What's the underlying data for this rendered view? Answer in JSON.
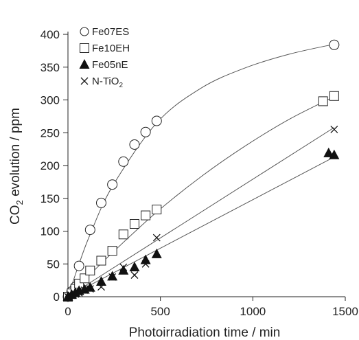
{
  "chart_data": {
    "type": "scatter",
    "title": "",
    "xlabel": "Photoirradiation time / min",
    "ylabel_main": "CO",
    "ylabel_sub": "2",
    "ylabel_rest": " evolution / ppm",
    "xlim": [
      0,
      1500
    ],
    "ylim": [
      0,
      400
    ],
    "xticks": [
      "0",
      "500",
      "1000",
      "1500"
    ],
    "yticks": [
      "0",
      "50",
      "100",
      "150",
      "200",
      "250",
      "300",
      "350",
      "400"
    ],
    "grid": false,
    "legend_position": "top-left",
    "series": [
      {
        "name": "Fe07ES",
        "marker": "open-circle",
        "x": [
          0,
          20,
          40,
          60,
          120,
          180,
          240,
          300,
          360,
          420,
          480,
          1440
        ],
        "y": [
          0,
          8,
          15,
          47,
          102,
          143,
          171,
          206,
          232,
          251,
          268,
          384
        ],
        "fit": {
          "x": [
            0,
            60,
            120,
            240,
            480,
            720,
            960,
            1200,
            1440
          ],
          "y": [
            0,
            50,
            95,
            168,
            265,
            318,
            349,
            370,
            385
          ]
        }
      },
      {
        "name": "Fe10EH",
        "marker": "open-square",
        "x": [
          0,
          20,
          40,
          60,
          90,
          120,
          180,
          240,
          300,
          360,
          420,
          480,
          1380,
          1440
        ],
        "y": [
          0,
          5,
          12,
          20,
          28,
          40,
          55,
          70,
          95,
          111,
          124,
          133,
          298,
          306
        ],
        "fit": {
          "x": [
            0,
            120,
            240,
            480,
            720,
            960,
            1200,
            1440
          ],
          "y": [
            0,
            34,
            67,
            129,
            183,
            230,
            271,
            305
          ]
        }
      },
      {
        "name": "Fe05nE",
        "marker": "filled-triangle",
        "x": [
          0,
          20,
          40,
          60,
          90,
          120,
          180,
          240,
          300,
          360,
          420,
          480,
          1410,
          1440
        ],
        "y": [
          0,
          3,
          6,
          9,
          11,
          14,
          23,
          31,
          40,
          45,
          56,
          65,
          219,
          216
        ],
        "fit": {
          "x": [
            0,
            1440
          ],
          "y": [
            0,
            213
          ]
        }
      },
      {
        "name": "N-TiO",
        "name_sub": "2",
        "marker": "cross",
        "x": [
          0,
          20,
          40,
          60,
          90,
          120,
          180,
          240,
          300,
          360,
          420,
          480,
          1440
        ],
        "y": [
          0,
          2,
          4,
          6,
          10,
          12,
          15,
          30,
          45,
          33,
          50,
          90,
          255
        ],
        "fit": {
          "x": [
            0,
            1440
          ],
          "y": [
            0,
            258
          ]
        }
      }
    ]
  }
}
